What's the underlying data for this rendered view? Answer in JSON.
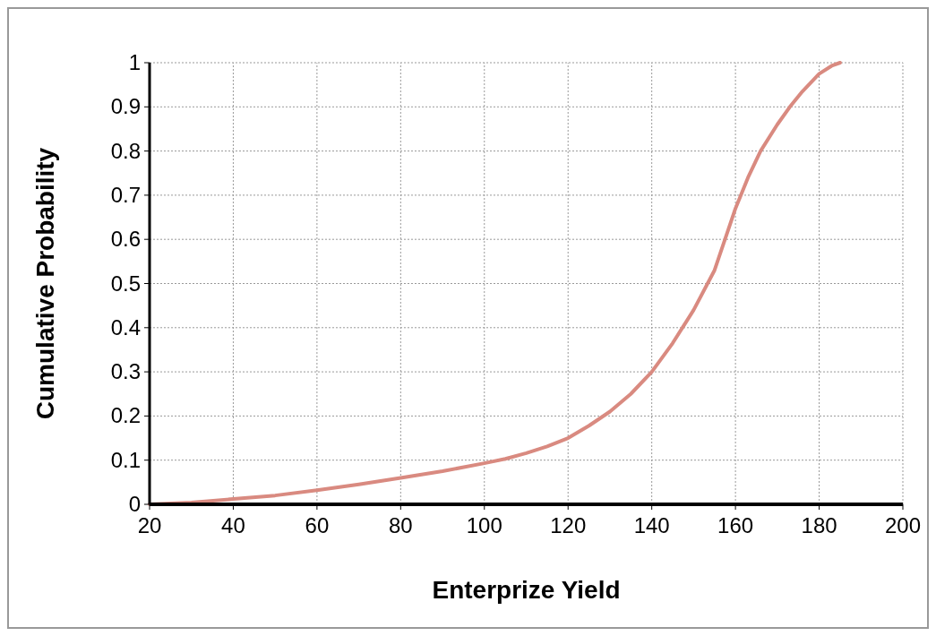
{
  "chart_data": {
    "type": "line",
    "xlabel": "Enterprize Yield",
    "ylabel": "Cumulative Probability",
    "series": [
      {
        "color": "#d98a80",
        "x": [
          20,
          30,
          40,
          50,
          60,
          70,
          80,
          90,
          100,
          105,
          110,
          115,
          120,
          125,
          130,
          135,
          140,
          145,
          150,
          155,
          160,
          163,
          166,
          170,
          173,
          176,
          180,
          183,
          185
        ],
        "values": [
          0,
          0.004,
          0.012,
          0.02,
          0.032,
          0.045,
          0.06,
          0.075,
          0.093,
          0.103,
          0.116,
          0.131,
          0.15,
          0.178,
          0.21,
          0.25,
          0.3,
          0.365,
          0.44,
          0.53,
          0.67,
          0.74,
          0.8,
          0.86,
          0.9,
          0.935,
          0.975,
          0.993,
          1
        ]
      }
    ],
    "xlim": [
      20,
      200
    ],
    "xticks": [
      20,
      40,
      60,
      80,
      100,
      120,
      140,
      160,
      180,
      200
    ],
    "ylim": [
      0,
      1
    ],
    "yticks": [
      0,
      0.1,
      0.2,
      0.3,
      0.4,
      0.5,
      0.6,
      0.7,
      0.8,
      0.9,
      1
    ],
    "grid": true,
    "line_style": "solid",
    "marker": "none"
  }
}
